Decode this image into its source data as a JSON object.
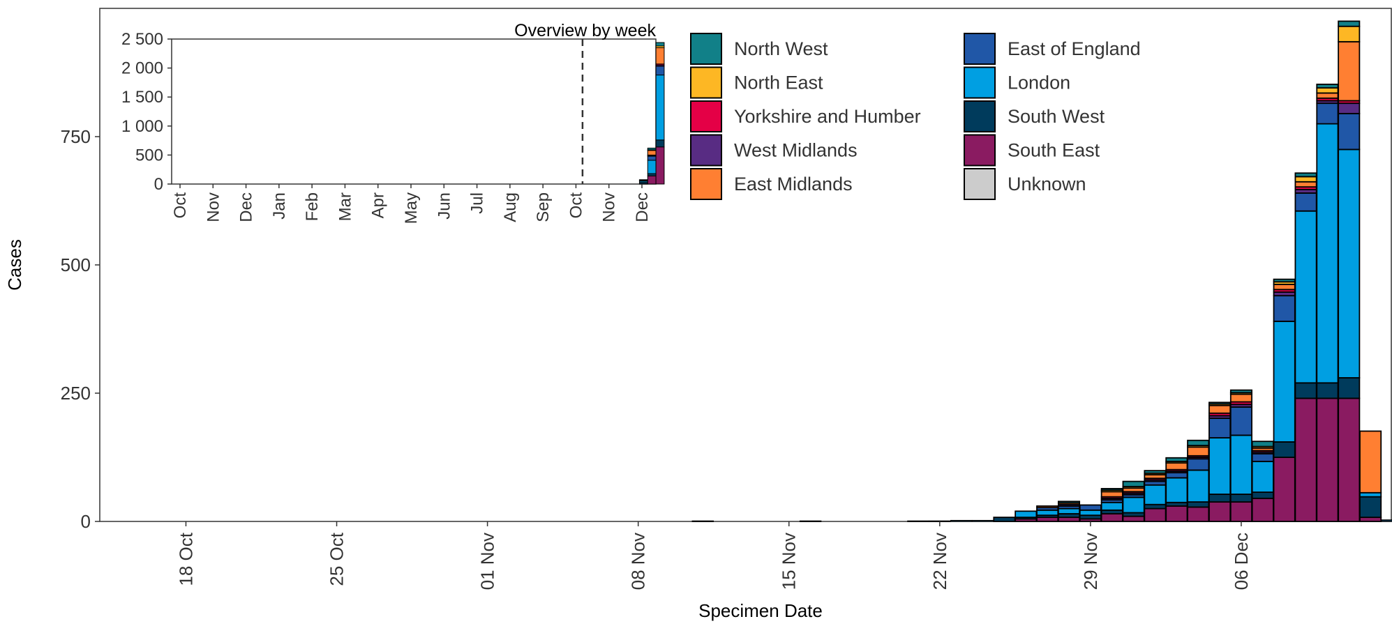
{
  "chart_data": [
    {
      "type": "bar",
      "stacked": true,
      "title": "",
      "xlabel": "Specimen Date",
      "ylabel": "Cases",
      "ylim": [
        0,
        1000
      ],
      "y_ticks": [
        0,
        250,
        500,
        750
      ],
      "y_tick_labels": [
        "0",
        "250",
        "500",
        "750"
      ],
      "x_ticks": [
        {
          "date": "2020-10-18",
          "label": "18 Oct"
        },
        {
          "date": "2020-10-25",
          "label": "25 Oct"
        },
        {
          "date": "2020-11-01",
          "label": "01 Nov"
        },
        {
          "date": "2020-11-08",
          "label": "08 Nov"
        },
        {
          "date": "2020-11-15",
          "label": "15 Nov"
        },
        {
          "date": "2020-11-22",
          "label": "22 Nov"
        },
        {
          "date": "2020-11-29",
          "label": "29 Nov"
        },
        {
          "date": "2020-12-06",
          "label": "06 Dec"
        }
      ],
      "x_range": [
        "2020-10-14",
        "2020-12-13"
      ],
      "categories": [
        "2020-11-25",
        "2020-11-26",
        "2020-11-27",
        "2020-11-28",
        "2020-11-29",
        "2020-11-30",
        "2020-12-01",
        "2020-12-02",
        "2020-12-03",
        "2020-12-04",
        "2020-12-05",
        "2020-12-06",
        "2020-12-07",
        "2020-12-08",
        "2020-12-09",
        "2020-12-10",
        "2020-12-11",
        "2020-12-12"
      ],
      "series": [
        {
          "name": "South East",
          "key": "south_east",
          "values": [
            0,
            5,
            8,
            8,
            5,
            15,
            10,
            25,
            30,
            28,
            38,
            38,
            45,
            125,
            240,
            240,
            240,
            8
          ]
        },
        {
          "name": "South West",
          "key": "south_west",
          "values": [
            8,
            3,
            4,
            7,
            7,
            7,
            7,
            8,
            7,
            10,
            15,
            15,
            12,
            30,
            30,
            30,
            40,
            40
          ]
        },
        {
          "name": "London",
          "key": "london",
          "values": [
            0,
            12,
            10,
            10,
            10,
            15,
            30,
            38,
            48,
            62,
            110,
            115,
            60,
            235,
            335,
            505,
            445,
            8
          ]
        },
        {
          "name": "East of England",
          "key": "east_of_england",
          "values": [
            0,
            0,
            5,
            5,
            10,
            5,
            5,
            7,
            10,
            22,
            38,
            55,
            15,
            50,
            35,
            40,
            70,
            0
          ]
        },
        {
          "name": "West Midlands",
          "key": "west_midlands",
          "values": [
            0,
            0,
            0,
            3,
            0,
            3,
            3,
            3,
            3,
            3,
            5,
            5,
            3,
            7,
            7,
            5,
            20,
            0
          ]
        },
        {
          "name": "Yorkshire and Humber",
          "key": "yorkshire",
          "values": [
            0,
            0,
            0,
            0,
            0,
            3,
            3,
            3,
            3,
            3,
            5,
            5,
            3,
            5,
            5,
            5,
            5,
            0
          ]
        },
        {
          "name": "East Midlands",
          "key": "east_midlands",
          "values": [
            0,
            0,
            3,
            3,
            0,
            10,
            7,
            7,
            13,
            17,
            15,
            15,
            5,
            10,
            10,
            10,
            115,
            120
          ]
        },
        {
          "name": "North East",
          "key": "north_east",
          "values": [
            0,
            0,
            0,
            0,
            0,
            3,
            3,
            3,
            3,
            3,
            3,
            3,
            3,
            5,
            10,
            10,
            30,
            0
          ]
        },
        {
          "name": "North West",
          "key": "north_west",
          "values": [
            0,
            0,
            0,
            3,
            0,
            3,
            10,
            5,
            7,
            10,
            3,
            5,
            10,
            5,
            7,
            7,
            10,
            0
          ]
        },
        {
          "name": "Unknown",
          "key": "unknown",
          "values": [
            0,
            0,
            0,
            0,
            0,
            0,
            0,
            0,
            0,
            0,
            0,
            0,
            0,
            0,
            0,
            0,
            0,
            0
          ]
        }
      ],
      "tiny_bars": [
        {
          "date": "2020-11-11",
          "value": 1
        },
        {
          "date": "2020-11-16",
          "value": 1
        },
        {
          "date": "2020-11-21",
          "value": 1
        },
        {
          "date": "2020-11-22",
          "value": 1
        },
        {
          "date": "2020-11-23",
          "value": 2
        },
        {
          "date": "2020-11-24",
          "value": 2
        },
        {
          "date": "2020-12-13",
          "value": 3
        }
      ],
      "legend": {
        "placement": "top-right",
        "entries": [
          {
            "name": "North West",
            "color": "#118088"
          },
          {
            "name": "East of England",
            "color": "#2057A7"
          },
          {
            "name": "North East",
            "color": "#FDB724"
          },
          {
            "name": "London",
            "color": "#009FE2"
          },
          {
            "name": "Yorkshire and Humber",
            "color": "#E40046"
          },
          {
            "name": "South West",
            "color": "#003B5C"
          },
          {
            "name": "West Midlands",
            "color": "#582C83"
          },
          {
            "name": "South East",
            "color": "#8A1B61"
          },
          {
            "name": "East Midlands",
            "color": "#FF7F32"
          },
          {
            "name": "Unknown",
            "color": "#CCCCCC"
          }
        ]
      },
      "colors": {
        "north_west": "#118088",
        "east_of_england": "#2057A7",
        "north_east": "#FDB724",
        "london": "#009FE2",
        "yorkshire": "#E40046",
        "south_west": "#003B5C",
        "west_midlands": "#582C83",
        "south_east": "#8A1B61",
        "east_midlands": "#FF7F32",
        "unknown": "#CCCCCC"
      },
      "grid": false
    },
    {
      "type": "bar",
      "stacked": true,
      "title": "Overview by week",
      "ylim": [
        0,
        2500
      ],
      "y_ticks": [
        0,
        500,
        1000,
        1500,
        2000,
        2500
      ],
      "y_tick_labels": [
        "0",
        "500",
        "1 000",
        "1 500",
        "2 000",
        "2 500"
      ],
      "x_month_labels": [
        "Oct",
        "Nov",
        "Dec",
        "Jan",
        "Feb",
        "Mar",
        "Apr",
        "May",
        "Jun",
        "Jul",
        "Aug",
        "Sep",
        "Oct",
        "Nov",
        "Dec"
      ],
      "reference_line_month_index": 12.2,
      "weeks": [
        {
          "month_pos": 14.05,
          "south_east": 5,
          "south_west": 30,
          "london": 20,
          "east_of_england": 10,
          "west_midlands": 0,
          "yorkshire": 0,
          "east_midlands": 5,
          "north_east": 0,
          "north_west": 5
        },
        {
          "month_pos": 14.3,
          "south_east": 140,
          "south_west": 40,
          "london": 230,
          "east_of_england": 70,
          "west_midlands": 10,
          "yorkshire": 10,
          "east_midlands": 80,
          "north_east": 10,
          "north_west": 30
        },
        {
          "month_pos": 14.55,
          "south_east": 640,
          "south_west": 120,
          "london": 1120,
          "east_of_england": 150,
          "west_midlands": 20,
          "yorkshire": 20,
          "east_midlands": 280,
          "north_east": 30,
          "north_west": 60
        }
      ]
    }
  ]
}
